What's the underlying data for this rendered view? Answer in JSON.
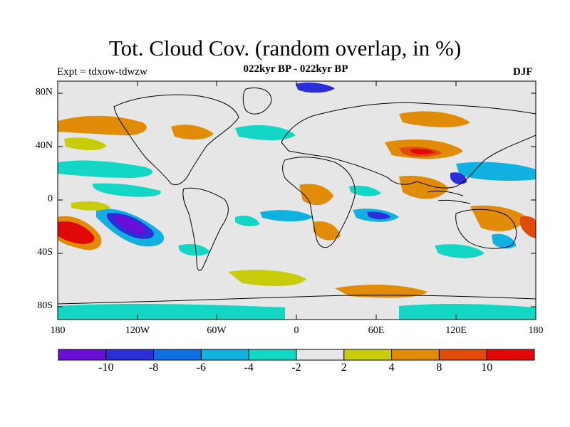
{
  "title": "Tot. Cloud Cov. (random overlap, in %)",
  "subtitle": "022kyr BP - 022kyr BP",
  "expt": "Expt = tdxow-tdwzw",
  "season": "DJF",
  "lat_labels": [
    "80N",
    "40N",
    "0",
    "40S",
    "80S"
  ],
  "lon_labels": [
    "180",
    "120W",
    "60W",
    "0",
    "60E",
    "120E",
    "180"
  ],
  "colorbar": {
    "labels": [
      "-10",
      "-8",
      "-6",
      "-4",
      "-2",
      "2",
      "4",
      "8",
      "10"
    ],
    "colors": [
      "#6a0fd8",
      "#2c2ed8",
      "#0f6fe0",
      "#10b0e0",
      "#14d6c4",
      "#e6e6e6",
      "#c8cc0a",
      "#e08c08",
      "#e04c08",
      "#e00808"
    ]
  },
  "colors": {
    "land_outline": "#000000",
    "neutral": "#e6e6e6"
  }
}
